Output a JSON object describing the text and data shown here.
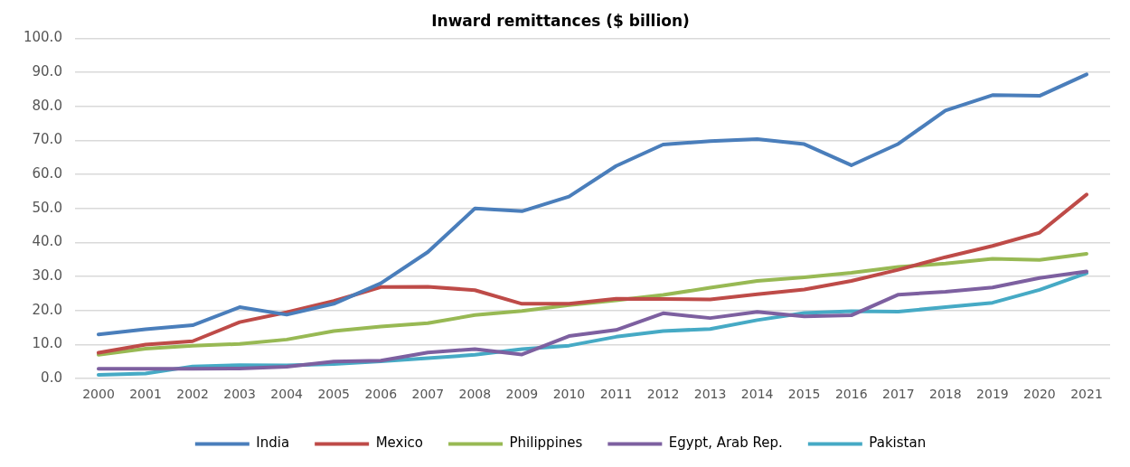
{
  "chart_data": {
    "type": "line",
    "title": "Inward remittances ($ billion)",
    "categories": [
      "2000",
      "2001",
      "2002",
      "2003",
      "2004",
      "2005",
      "2006",
      "2007",
      "2008",
      "2009",
      "2010",
      "2011",
      "2012",
      "2013",
      "2014",
      "2015",
      "2016",
      "2017",
      "2018",
      "2019",
      "2020",
      "2021"
    ],
    "series": [
      {
        "name": "India",
        "color": "#4a7ebb",
        "values": [
          13,
          14.5,
          15.7,
          21,
          18.8,
          22,
          28,
          37.2,
          50,
          49.2,
          53.5,
          62.5,
          68.8,
          69.8,
          70.4,
          68.9,
          62.7,
          69,
          78.8,
          83.3,
          83.1,
          89.4
        ]
      },
      {
        "name": "Mexico",
        "color": "#be4b48",
        "values": [
          7.6,
          10,
          11,
          16.6,
          19.5,
          22.8,
          26.9,
          27,
          26,
          22,
          22,
          23.5,
          23.4,
          23.3,
          24.8,
          26.2,
          28.7,
          32,
          35.7,
          39,
          42.9,
          54.1
        ]
      },
      {
        "name": "Philippines",
        "color": "#98b954",
        "values": [
          7,
          8.8,
          9.7,
          10.2,
          11.5,
          14,
          15.3,
          16.3,
          18.7,
          19.9,
          21.6,
          23,
          24.6,
          26.7,
          28.7,
          29.8,
          31.1,
          32.8,
          33.8,
          35.2,
          34.9,
          36.7
        ]
      },
      {
        "name": "Egypt, Arab Rep.",
        "color": "#7d60a0",
        "values": [
          2.9,
          2.9,
          2.9,
          3,
          3.5,
          5,
          5.3,
          7.7,
          8.7,
          7.1,
          12.5,
          14.3,
          19.2,
          17.8,
          19.6,
          18.3,
          18.6,
          24.7,
          25.5,
          26.8,
          29.6,
          31.5
        ]
      },
      {
        "name": "Pakistan",
        "color": "#46aac5",
        "values": [
          1.1,
          1.5,
          3.6,
          4,
          3.9,
          4.3,
          5.1,
          6,
          7,
          8.7,
          9.7,
          12.3,
          14,
          14.6,
          17.2,
          19.3,
          19.8,
          19.7,
          21,
          22.3,
          26.1,
          31
        ]
      }
    ],
    "ylim": [
      0,
      100
    ],
    "yticks": [
      {
        "value": 0,
        "label": "0.0"
      },
      {
        "value": 10,
        "label": "10.0"
      },
      {
        "value": 20,
        "label": "20.0"
      },
      {
        "value": 30,
        "label": "30.0"
      },
      {
        "value": 40,
        "label": "40.0"
      },
      {
        "value": 50,
        "label": "50.0"
      },
      {
        "value": 60,
        "label": "60.0"
      },
      {
        "value": 70,
        "label": "70.0"
      },
      {
        "value": 80,
        "label": "80.0"
      },
      {
        "value": 90,
        "label": "90.0"
      },
      {
        "value": 100,
        "label": "100.0"
      }
    ],
    "grid": "y",
    "legend": "bottom",
    "marker": "none",
    "line_style": "solid"
  }
}
